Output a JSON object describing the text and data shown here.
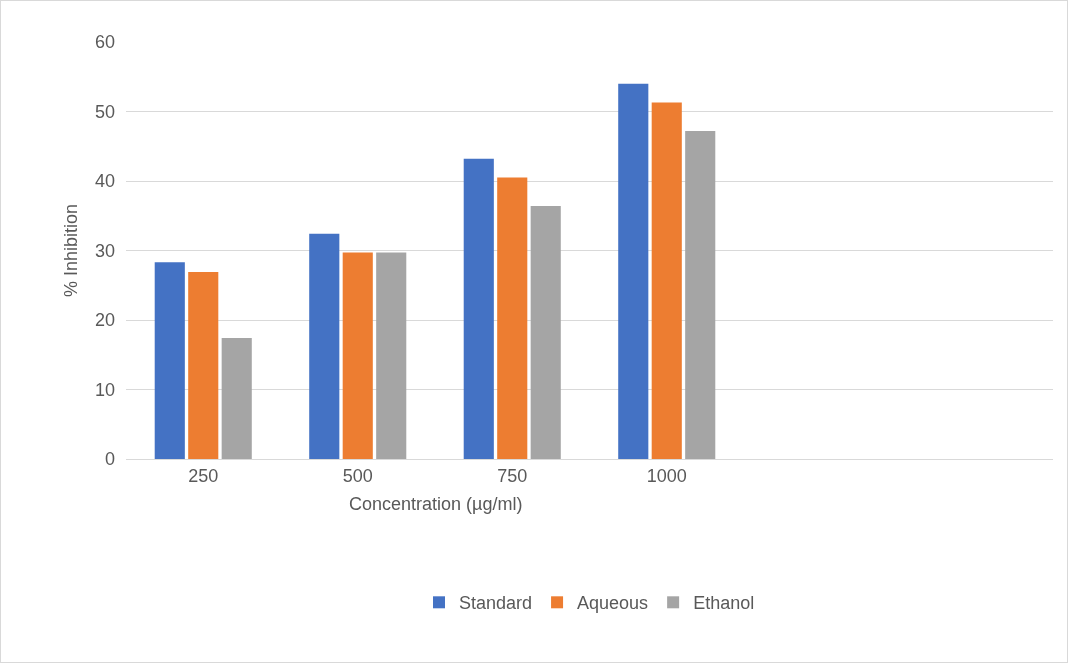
{
  "chart_data": {
    "type": "bar",
    "xlabel": "Concentration (µg/ml)",
    "ylabel": "% Inhibition",
    "categories": [
      "250",
      "500",
      "750",
      "1000",
      null,
      null
    ],
    "series": [
      {
        "name": "Standard",
        "color": "#4472c4",
        "values": [
          28.3,
          32.4,
          43.2,
          54.0,
          null,
          null
        ]
      },
      {
        "name": "Aqueous",
        "color": "#ed7d31",
        "values": [
          26.9,
          29.7,
          40.5,
          51.3,
          null,
          null
        ]
      },
      {
        "name": "Ethanol",
        "color": "#a5a5a5",
        "values": [
          17.4,
          29.7,
          36.4,
          47.2,
          null,
          null
        ]
      }
    ],
    "ylim": [
      0,
      60
    ],
    "yticks": [
      0,
      10,
      20,
      30,
      40,
      50,
      60
    ],
    "grid": "y",
    "legend": "bottom"
  }
}
